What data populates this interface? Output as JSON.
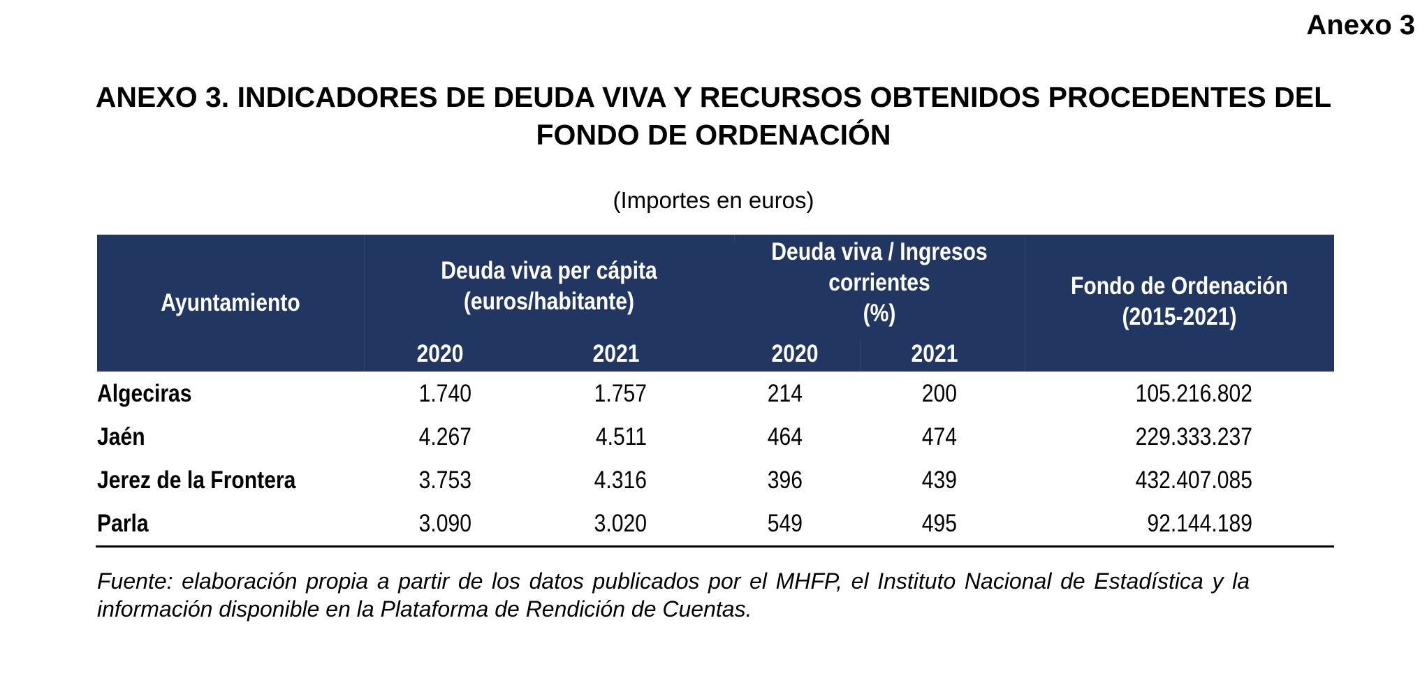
{
  "annex_label": "Anexo 3",
  "title_line1": "ANEXO 3. INDICADORES DE DEUDA VIVA Y RECURSOS OBTENIDOS PROCEDENTES DEL",
  "title_line2": "FONDO DE ORDENACIÓN",
  "units": "(Importes en euros)",
  "table": {
    "headers": {
      "ayuntamiento": "Ayuntamiento",
      "per_capita_1": "Deuda viva per cápita",
      "per_capita_2": "(euros/habitante)",
      "ratio_1": "Deuda viva / Ingresos",
      "ratio_2": "corrientes",
      "ratio_3": "(%)",
      "fondo_1": "Fondo de Ordenación",
      "fondo_2": "(2015-2021)",
      "years": [
        "2020",
        "2021",
        "2020",
        "2021"
      ]
    },
    "rows": [
      {
        "name": "Algeciras",
        "pc2020": "1.740",
        "pc2021": "1.757",
        "r2020": "214",
        "r2021": "200",
        "fondo": "105.216.802"
      },
      {
        "name": "Jaén",
        "pc2020": "4.267",
        "pc2021": "4.511",
        "r2020": "464",
        "r2021": "474",
        "fondo": "229.333.237"
      },
      {
        "name": "Jerez de la Frontera",
        "pc2020": "3.753",
        "pc2021": "4.316",
        "r2020": "396",
        "r2021": "439",
        "fondo": "432.407.085"
      },
      {
        "name": "Parla",
        "pc2020": "3.090",
        "pc2021": "3.020",
        "r2020": "549",
        "r2021": "495",
        "fondo": "92.144.189"
      }
    ]
  },
  "footnote": "Fuente: elaboración propia a partir de los datos publicados por el MHFP, el Instituto Nacional de Estadística y la información disponible en la Plataforma de Rendición de Cuentas.",
  "colors": {
    "header_bg": "#213762"
  }
}
